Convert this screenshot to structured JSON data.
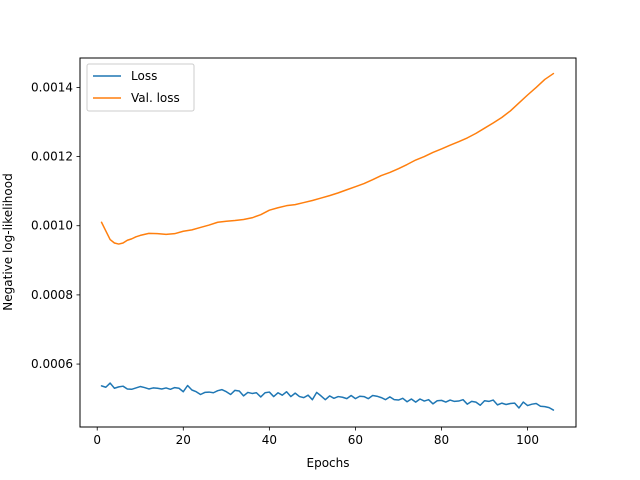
{
  "chart_data": {
    "type": "line",
    "title": "",
    "xlabel": "Epochs",
    "ylabel": "Negative log-likelihood",
    "xlim": [
      -4,
      111.25
    ],
    "ylim": [
      0.000418,
      0.001485
    ],
    "xticks": [
      0,
      20,
      40,
      60,
      80,
      100
    ],
    "xtick_labels": [
      "0",
      "20",
      "40",
      "60",
      "80",
      "100"
    ],
    "yticks": [
      0.0006,
      0.0008,
      0.001,
      0.0012,
      0.0014
    ],
    "ytick_labels": [
      "0.0006",
      "0.0008",
      "0.0010",
      "0.0012",
      "0.0014"
    ],
    "grid": false,
    "legend_position": "upper-left",
    "series": [
      {
        "name": "Loss",
        "color": "#1f77b4",
        "x": [
          1,
          2,
          3,
          4,
          5,
          6,
          7,
          8,
          9,
          10,
          11,
          12,
          13,
          14,
          15,
          16,
          17,
          18,
          19,
          20,
          21,
          22,
          23,
          24,
          25,
          26,
          27,
          28,
          29,
          30,
          31,
          32,
          33,
          34,
          35,
          36,
          37,
          38,
          39,
          40,
          41,
          42,
          43,
          44,
          45,
          46,
          47,
          48,
          49,
          50,
          51,
          52,
          53,
          54,
          55,
          56,
          57,
          58,
          59,
          60,
          61,
          62,
          63,
          64,
          65,
          66,
          67,
          68,
          69,
          70,
          71,
          72,
          73,
          74,
          75,
          76,
          77,
          78,
          79,
          80,
          81,
          82,
          83,
          84,
          85,
          86,
          87,
          88,
          89,
          90,
          91,
          92,
          93,
          94,
          95,
          96,
          97,
          98,
          99,
          100,
          101,
          102,
          103,
          104,
          105,
          106
        ],
        "values": [
          0.000537,
          0.000533,
          0.000545,
          0.00053,
          0.000534,
          0.000536,
          0.000528,
          0.000527,
          0.000531,
          0.000535,
          0.000532,
          0.000528,
          0.000531,
          0.00053,
          0.000528,
          0.000531,
          0.000527,
          0.000532,
          0.00053,
          0.00052,
          0.000538,
          0.000525,
          0.00052,
          0.000512,
          0.000518,
          0.000519,
          0.000517,
          0.000523,
          0.000526,
          0.00052,
          0.000512,
          0.000524,
          0.000522,
          0.000508,
          0.000518,
          0.000515,
          0.000517,
          0.000505,
          0.000517,
          0.000519,
          0.000506,
          0.000517,
          0.00051,
          0.00052,
          0.000506,
          0.000516,
          0.000506,
          0.000503,
          0.00051,
          0.000497,
          0.000518,
          0.000508,
          0.000497,
          0.000508,
          0.000501,
          0.000506,
          0.000504,
          0.0005,
          0.000509,
          0.0005,
          0.000507,
          0.000506,
          0.0005,
          0.000509,
          0.000507,
          0.000503,
          0.000497,
          0.000505,
          0.000497,
          0.000496,
          0.000501,
          0.000491,
          0.000499,
          0.00049,
          0.000499,
          0.000493,
          0.000497,
          0.000485,
          0.000494,
          0.000495,
          0.00049,
          0.000496,
          0.000492,
          0.000493,
          0.000497,
          0.000484,
          0.000492,
          0.00049,
          0.000481,
          0.000494,
          0.000492,
          0.000496,
          0.000482,
          0.000487,
          0.000483,
          0.000486,
          0.000487,
          0.000473,
          0.00049,
          0.00048,
          0.000484,
          0.000486,
          0.000478,
          0.000477,
          0.000474,
          0.000467
        ]
      },
      {
        "name": "Val. loss",
        "color": "#ff7f0e",
        "x": [
          1,
          2,
          3,
          4,
          5,
          6,
          7,
          8,
          9,
          10,
          12,
          14,
          16,
          18,
          20,
          22,
          24,
          26,
          28,
          30,
          32,
          34,
          36,
          38,
          40,
          42,
          44,
          46,
          48,
          50,
          52,
          54,
          56,
          58,
          60,
          62,
          64,
          66,
          68,
          70,
          72,
          74,
          76,
          78,
          80,
          82,
          84,
          86,
          88,
          90,
          92,
          94,
          96,
          98,
          100,
          102,
          104,
          106
        ],
        "values": [
          0.00101,
          0.000985,
          0.00096,
          0.00095,
          0.000947,
          0.00095,
          0.000958,
          0.000962,
          0.000968,
          0.000972,
          0.000978,
          0.000977,
          0.000975,
          0.000977,
          0.000984,
          0.000988,
          0.000995,
          0.001002,
          0.00101,
          0.001013,
          0.001015,
          0.001018,
          0.001023,
          0.001032,
          0.001045,
          0.001052,
          0.001058,
          0.001061,
          0.001067,
          0.001073,
          0.00108,
          0.001087,
          0.001095,
          0.001104,
          0.001113,
          0.001122,
          0.001133,
          0.001145,
          0.001154,
          0.001165,
          0.001177,
          0.00119,
          0.0012,
          0.001212,
          0.001222,
          0.001233,
          0.001243,
          0.001254,
          0.001267,
          0.001282,
          0.001297,
          0.001313,
          0.001332,
          0.001355,
          0.001378,
          0.0014,
          0.001423,
          0.00144
        ]
      }
    ]
  }
}
